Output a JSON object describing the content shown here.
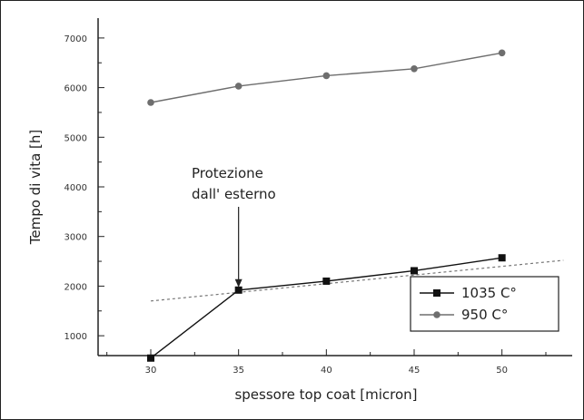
{
  "chart_data": {
    "type": "line",
    "xlabel": "spessore top coat [micron]",
    "ylabel": "Tempo di vita [h]",
    "x": [
      30,
      35,
      40,
      45,
      50
    ],
    "xlim": [
      27,
      54
    ],
    "ylim": [
      600,
      7400
    ],
    "xticks": [
      30,
      35,
      40,
      45,
      50
    ],
    "yticks": [
      1000,
      2000,
      3000,
      4000,
      5000,
      6000,
      7000
    ],
    "series": [
      {
        "name": "1035 C°",
        "marker": "square",
        "color": "#111111",
        "values": [
          550,
          1920,
          2100,
          2310,
          2570
        ]
      },
      {
        "name": "950 C°",
        "marker": "circle",
        "color": "#6e6e6e",
        "values": [
          5700,
          6030,
          6240,
          6380,
          6700
        ]
      }
    ],
    "trendline": {
      "style": "dashed",
      "x": [
        30,
        53.5
      ],
      "y": [
        1700,
        2520
      ]
    },
    "annotation": {
      "lines": [
        "Protezione",
        "dall' esterno"
      ],
      "arrow_to": [
        35,
        1920
      ]
    },
    "legend": {
      "position": "bottom-right"
    },
    "grid": false
  }
}
